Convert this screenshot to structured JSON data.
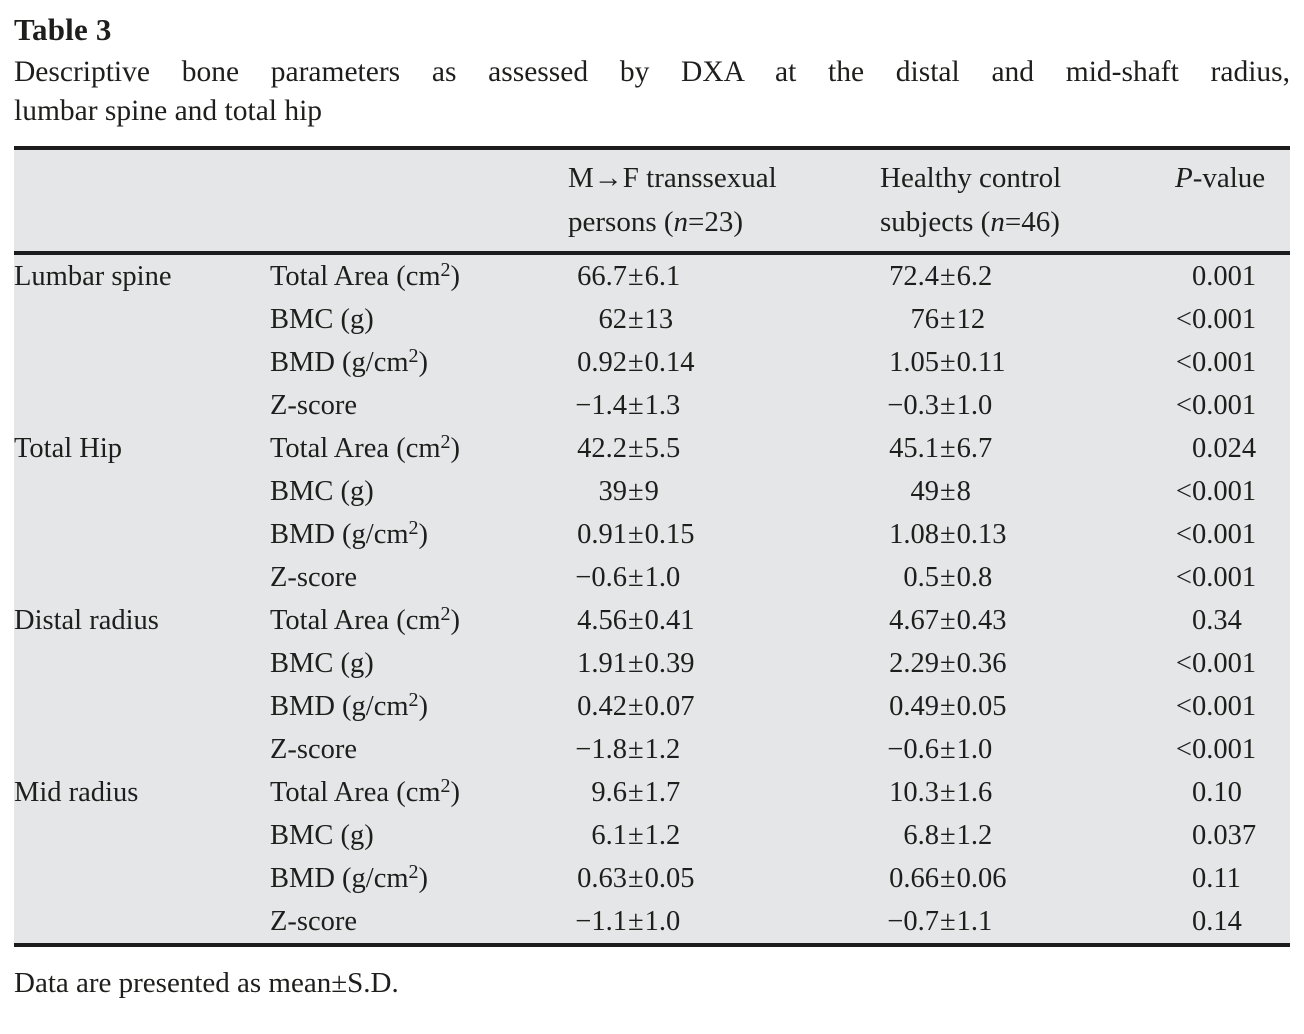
{
  "title": "Table 3",
  "caption_line1": "Descriptive bone parameters as assessed by DXA at the distal and mid-shaft radius,",
  "caption_line2": "lumbar spine and total hip",
  "header": {
    "col3": {
      "line1": "M→F transsexual",
      "line2_pre": "persons (",
      "n": "n",
      "line2_post": "=23)"
    },
    "col4": {
      "line1": "Healthy control",
      "line2_pre": "subjects (",
      "n": "n",
      "line2_post": "=46)"
    },
    "col5": {
      "italic": "P",
      "rest": "-value"
    }
  },
  "symbols": {
    "plus_minus": "±",
    "less_than": "<"
  },
  "table": {
    "sections": [
      {
        "site": "Lumbar spine",
        "rows": [
          {
            "param": "Total Area (cm²)",
            "t_mean": "66.7",
            "t_sd": "6.1",
            "c_mean": "72.4",
            "c_sd": "6.2",
            "p": "0.001"
          },
          {
            "param": "BMC (g)",
            "t_mean": "62",
            "t_sd": "13",
            "c_mean": "76",
            "c_sd": "12",
            "p": "<0.001"
          },
          {
            "param": "BMD (g/cm²)",
            "t_mean": "0.92",
            "t_sd": "0.14",
            "c_mean": "1.05",
            "c_sd": "0.11",
            "p": "<0.001"
          },
          {
            "param": "Z-score",
            "t_mean": "−1.4",
            "t_sd": "1.3",
            "c_mean": "−0.3",
            "c_sd": "1.0",
            "p": "<0.001"
          }
        ]
      },
      {
        "site": "Total Hip",
        "rows": [
          {
            "param": "Total Area (cm²)",
            "t_mean": "42.2",
            "t_sd": "5.5",
            "c_mean": "45.1",
            "c_sd": "6.7",
            "p": "0.024"
          },
          {
            "param": "BMC (g)",
            "t_mean": "39",
            "t_sd": "9",
            "c_mean": "49",
            "c_sd": "8",
            "p": "<0.001"
          },
          {
            "param": "BMD (g/cm²)",
            "t_mean": "0.91",
            "t_sd": "0.15",
            "c_mean": "1.08",
            "c_sd": "0.13",
            "p": "<0.001"
          },
          {
            "param": "Z-score",
            "t_mean": "−0.6",
            "t_sd": "1.0",
            "c_mean": "0.5",
            "c_sd": "0.8",
            "p": "<0.001"
          }
        ]
      },
      {
        "site": "Distal radius",
        "rows": [
          {
            "param": "Total Area (cm²)",
            "t_mean": "4.56",
            "t_sd": "0.41",
            "c_mean": "4.67",
            "c_sd": "0.43",
            "p": "0.34"
          },
          {
            "param": "BMC (g)",
            "t_mean": "1.91",
            "t_sd": "0.39",
            "c_mean": "2.29",
            "c_sd": "0.36",
            "p": "<0.001"
          },
          {
            "param": "BMD (g/cm²)",
            "t_mean": "0.42",
            "t_sd": "0.07",
            "c_mean": "0.49",
            "c_sd": "0.05",
            "p": "<0.001"
          },
          {
            "param": "Z-score",
            "t_mean": "−1.8",
            "t_sd": "1.2",
            "c_mean": "−0.6",
            "c_sd": "1.0",
            "p": "<0.001"
          }
        ]
      },
      {
        "site": "Mid radius",
        "rows": [
          {
            "param": "Total Area (cm²)",
            "t_mean": "9.6",
            "t_sd": "1.7",
            "c_mean": "10.3",
            "c_sd": "1.6",
            "p": "0.10"
          },
          {
            "param": "BMC (g)",
            "t_mean": "6.1",
            "t_sd": "1.2",
            "c_mean": "6.8",
            "c_sd": "1.2",
            "p": "0.037"
          },
          {
            "param": "BMD (g/cm²)",
            "t_mean": "0.63",
            "t_sd": "0.05",
            "c_mean": "0.66",
            "c_sd": "0.06",
            "p": "0.11"
          },
          {
            "param": "Z-score",
            "t_mean": "−1.1",
            "t_sd": "1.0",
            "c_mean": "−0.7",
            "c_sd": "1.1",
            "p": "0.14"
          }
        ]
      }
    ]
  },
  "footnote": "Data are presented as mean±S.D.",
  "colors": {
    "table_background": "#e5e6e7",
    "rule_color": "#1c1c1c",
    "text_color": "#1e1e1c",
    "page_background": "#ffffff"
  }
}
